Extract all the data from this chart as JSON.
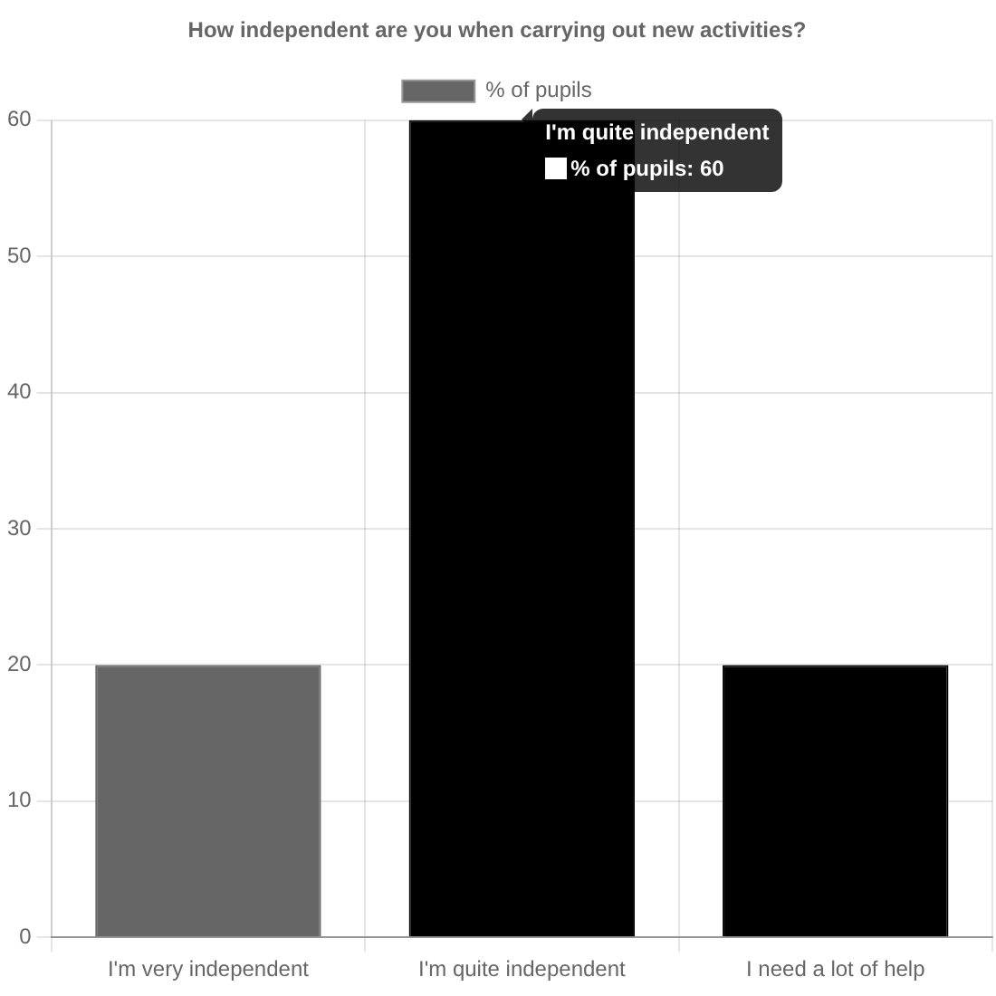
{
  "chart_data": {
    "type": "bar",
    "title": "How independent are you when carrying out new activities?",
    "categories": [
      "I'm very independent",
      "I'm quite independent",
      "I need a lot of help"
    ],
    "series": [
      {
        "name": "% of pupils",
        "color": "#666666",
        "colors": [
          "#666666",
          "#000000",
          "#000000"
        ],
        "values": [
          20,
          60,
          20
        ]
      }
    ],
    "ylim": [
      0,
      60
    ],
    "yticks": [
      0,
      10,
      20,
      30,
      40,
      50,
      60
    ],
    "grid": true,
    "legend": "top",
    "annotations": [
      {
        "text": "I'm quite independent\n% of pupils: 60",
        "x": "I'm quite independent",
        "y": 60
      }
    ]
  }
}
